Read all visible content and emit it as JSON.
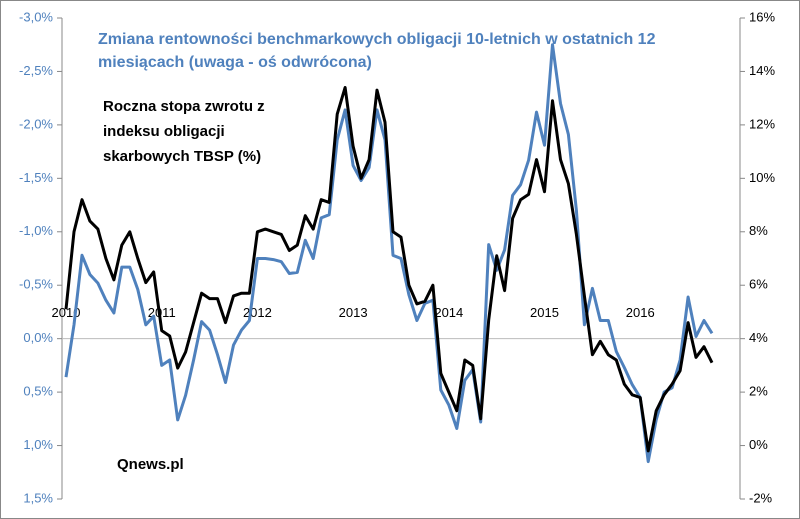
{
  "chart_data": {
    "type": "line",
    "title": "Zmiana rentowności benchmarkowych obligacji 10-letnich w ostatnich 12 miesiącach (uwaga - oś odwrócona)",
    "source": "Qnews.pl",
    "categories": [
      "2010",
      null,
      null,
      null,
      null,
      null,
      null,
      null,
      null,
      null,
      null,
      null,
      "2011",
      null,
      null,
      null,
      null,
      null,
      null,
      null,
      null,
      null,
      null,
      null,
      "2012",
      null,
      null,
      null,
      null,
      null,
      null,
      null,
      null,
      null,
      null,
      null,
      "2013",
      null,
      null,
      null,
      null,
      null,
      null,
      null,
      null,
      null,
      null,
      null,
      "2014",
      null,
      null,
      null,
      null,
      null,
      null,
      null,
      null,
      null,
      null,
      null,
      "2015",
      null,
      null,
      null,
      null,
      null,
      null,
      null,
      null,
      null,
      null,
      null,
      "2016",
      null,
      null,
      null,
      null,
      null,
      null,
      null,
      null,
      null
    ],
    "series": [
      {
        "name": "Zmiana rentowności benchmarkowych obligacji 10-letnich w ostatnich 12 miesiącach (uwaga - oś odwrócona)",
        "color": "#4f81bd",
        "values": [
          0.36,
          -0.13,
          -0.78,
          -0.6,
          -0.52,
          -0.36,
          -0.24,
          -0.67,
          -0.67,
          -0.46,
          -0.13,
          -0.21,
          0.25,
          0.2,
          0.76,
          0.53,
          0.2,
          -0.16,
          -0.08,
          0.15,
          0.41,
          0.06,
          -0.08,
          -0.17,
          -0.75,
          -0.75,
          -0.74,
          -0.72,
          -0.61,
          -0.62,
          -0.92,
          -0.75,
          -1.13,
          -1.16,
          -1.86,
          -2.14,
          -1.62,
          -1.48,
          -1.6,
          -2.14,
          -1.86,
          -0.78,
          -0.75,
          -0.41,
          -0.17,
          -0.33,
          -0.36,
          0.48,
          0.62,
          0.84,
          0.39,
          0.29,
          0.78,
          -0.88,
          -0.64,
          -0.83,
          -1.34,
          -1.44,
          -1.67,
          -2.12,
          -1.81,
          -2.75,
          -2.2,
          -1.91,
          -1.2,
          -0.13,
          -0.47,
          -0.17,
          -0.17,
          0.12,
          0.27,
          0.43,
          0.55,
          1.15,
          0.76,
          0.5,
          0.46,
          0.2,
          -0.39,
          -0.02,
          -0.17,
          -0.05
        ]
      },
      {
        "name": "Roczna stopa zwrotu z indeksu obligacji skarbowych TBSP (%)",
        "color": "#000000",
        "axis": "y2",
        "values": [
          5.1,
          8.0,
          9.2,
          8.4,
          8.1,
          7.0,
          6.2,
          7.5,
          8.0,
          7.0,
          6.1,
          6.5,
          4.3,
          4.1,
          2.9,
          3.5,
          4.6,
          5.7,
          5.5,
          5.5,
          4.6,
          5.6,
          5.7,
          5.7,
          8.0,
          8.1,
          8.0,
          7.9,
          7.3,
          7.5,
          8.6,
          8.1,
          9.2,
          9.1,
          12.4,
          13.4,
          11.2,
          10.0,
          10.7,
          13.3,
          12.1,
          8.0,
          7.8,
          6.0,
          5.3,
          5.4,
          6.0,
          2.7,
          2.0,
          1.3,
          3.2,
          3.0,
          1.0,
          4.7,
          7.1,
          5.8,
          8.5,
          9.2,
          9.4,
          10.7,
          9.5,
          12.9,
          10.7,
          9.8,
          7.9,
          5.6,
          3.4,
          3.9,
          3.4,
          3.2,
          2.3,
          1.9,
          1.8,
          -0.2,
          1.3,
          1.9,
          2.3,
          2.8,
          4.6,
          3.3,
          3.7,
          3.1
        ]
      }
    ],
    "ylim": [
      1.5,
      -3.0
    ],
    "yticks": [
      {
        "value": -3.0,
        "label": "-3,0%"
      },
      {
        "value": -2.5,
        "label": "-2,5%"
      },
      {
        "value": -2.0,
        "label": "-2,0%"
      },
      {
        "value": -1.5,
        "label": "-1,5%"
      },
      {
        "value": -1.0,
        "label": "-1,0%"
      },
      {
        "value": -0.5,
        "label": "-0,5%"
      },
      {
        "value": 0.0,
        "label": "0,0%"
      },
      {
        "value": 0.5,
        "label": "0,5%"
      },
      {
        "value": 1.0,
        "label": "1,0%"
      },
      {
        "value": 1.5,
        "label": "1,5%"
      }
    ],
    "y2lim": [
      -2,
      16
    ],
    "y2ticks": [
      {
        "value": 16,
        "label": "16%"
      },
      {
        "value": 14,
        "label": "14%"
      },
      {
        "value": 12,
        "label": "12%"
      },
      {
        "value": 10,
        "label": "10%"
      },
      {
        "value": 8,
        "label": "8%"
      },
      {
        "value": 6,
        "label": "6%"
      },
      {
        "value": 4,
        "label": "4%"
      },
      {
        "value": 2,
        "label": "2%"
      },
      {
        "value": 0,
        "label": "0%"
      },
      {
        "value": -2,
        "label": "-2%"
      }
    ],
    "grid": false
  }
}
